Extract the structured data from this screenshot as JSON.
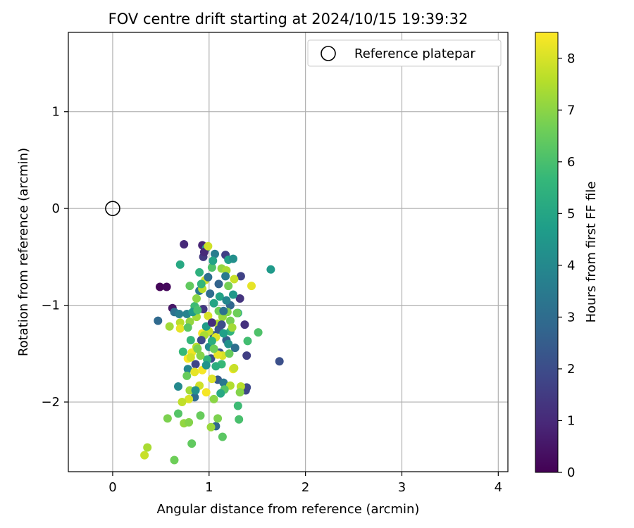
{
  "chart_data": {
    "type": "scatter",
    "title": "FOV centre drift starting at 2024/10/15 19:39:32",
    "xlabel": "Angular distance from reference (arcmin)",
    "ylabel": "Rotation from reference (arcmin)",
    "xlim": [
      -0.46,
      4.1
    ],
    "ylim": [
      -2.72,
      1.82
    ],
    "xticks": [
      0,
      1,
      2,
      3,
      4
    ],
    "xtick_labels": [
      "0",
      "1",
      "2",
      "3",
      "4"
    ],
    "yticks": [
      -2,
      -1,
      0,
      1
    ],
    "ytick_labels": [
      "−2",
      "−1",
      "0",
      "1"
    ],
    "grid": true,
    "legend": {
      "position": "top-right",
      "label": "Reference platepar"
    },
    "reference_point": {
      "x": 0,
      "y": 0,
      "label": "Reference platepar"
    },
    "colorbar": {
      "label": "Hours from first FF file",
      "range": [
        0,
        8.5
      ],
      "ticks": [
        0,
        1,
        2,
        3,
        4,
        5,
        6,
        7,
        8
      ],
      "tick_labels": [
        "0",
        "1",
        "2",
        "3",
        "4",
        "5",
        "6",
        "7",
        "8"
      ],
      "colormap": "viridis"
    },
    "points": [
      [
        0.49,
        -0.81,
        0.1
      ],
      [
        0.56,
        -0.81,
        0.2
      ],
      [
        0.62,
        -1.03,
        0.5
      ],
      [
        0.74,
        -0.37,
        1.0
      ],
      [
        0.93,
        -0.38,
        0.9
      ],
      [
        0.94,
        -0.5,
        1.4
      ],
      [
        1.17,
        -0.48,
        1.6
      ],
      [
        1.33,
        -0.7,
        1.7
      ],
      [
        1.32,
        -0.93,
        1.3
      ],
      [
        1.37,
        -1.2,
        1.2
      ],
      [
        1.39,
        -1.52,
        1.6
      ],
      [
        1.73,
        -1.58,
        2.1
      ],
      [
        1.39,
        -1.85,
        1.9
      ],
      [
        1.38,
        -1.88,
        1.8
      ],
      [
        0.47,
        -1.16,
        2.9
      ],
      [
        0.64,
        -1.07,
        3.2
      ],
      [
        0.69,
        -1.09,
        3.6
      ],
      [
        0.77,
        -1.09,
        3.8
      ],
      [
        0.68,
        -1.84,
        4.0
      ],
      [
        1.64,
        -0.63,
        4.6
      ],
      [
        0.7,
        -0.58,
        5.1
      ],
      [
        1.2,
        -0.53,
        4.8
      ],
      [
        1.25,
        -0.52,
        4.2
      ],
      [
        0.97,
        -0.41,
        4.3
      ],
      [
        1.06,
        -0.47,
        3.6
      ],
      [
        0.9,
        -0.85,
        3.4
      ],
      [
        1.01,
        -0.88,
        3.0
      ],
      [
        1.22,
        -1.0,
        2.8
      ],
      [
        1.05,
        -1.31,
        2.5
      ],
      [
        1.18,
        -1.36,
        2.6
      ],
      [
        1.11,
        -1.49,
        2.2
      ],
      [
        1.02,
        -1.55,
        2.0
      ],
      [
        0.86,
        -1.61,
        1.8
      ],
      [
        0.78,
        -1.66,
        3.9
      ],
      [
        1.09,
        -1.77,
        2.4
      ],
      [
        1.15,
        -1.8,
        3.4
      ],
      [
        0.85,
        -1.95,
        3.0
      ],
      [
        1.07,
        -2.25,
        2.8
      ],
      [
        1.3,
        -1.08,
        5.2
      ],
      [
        1.22,
        -1.27,
        5.5
      ],
      [
        1.4,
        -1.37,
        5.9
      ],
      [
        1.51,
        -1.28,
        6.1
      ],
      [
        1.3,
        -2.04,
        5.8
      ],
      [
        1.31,
        -2.18,
        6.0
      ],
      [
        1.14,
        -2.36,
        6.3
      ],
      [
        0.82,
        -2.43,
        6.4
      ],
      [
        0.64,
        -2.6,
        6.6
      ],
      [
        0.57,
        -2.17,
        6.8
      ],
      [
        0.68,
        -2.12,
        6.2
      ],
      [
        0.74,
        -2.22,
        7.1
      ],
      [
        0.79,
        -2.21,
        6.9
      ],
      [
        0.91,
        -2.14,
        6.5
      ],
      [
        1.02,
        -2.26,
        7.2
      ],
      [
        1.09,
        -2.17,
        6.8
      ],
      [
        0.33,
        -2.55,
        7.8
      ],
      [
        0.36,
        -2.47,
        7.4
      ],
      [
        1.33,
        -1.84,
        7.6
      ],
      [
        1.22,
        -1.83,
        7.5
      ],
      [
        1.32,
        -1.9,
        6.9
      ],
      [
        1.25,
        -1.66,
        8.3
      ],
      [
        1.14,
        -1.52,
        8.0
      ],
      [
        1.09,
        -1.51,
        8.2
      ],
      [
        0.97,
        -1.9,
        8.4
      ],
      [
        1.03,
        -1.76,
        8.1
      ],
      [
        0.9,
        -1.83,
        7.9
      ],
      [
        0.79,
        -1.97,
        8.0
      ],
      [
        0.72,
        -2.0,
        7.7
      ],
      [
        0.8,
        -1.88,
        7.3
      ],
      [
        0.85,
        -1.69,
        8.2
      ],
      [
        0.93,
        -1.67,
        8.4
      ],
      [
        0.78,
        -1.55,
        8.5
      ],
      [
        0.82,
        -1.49,
        8.3
      ],
      [
        0.87,
        -1.43,
        7.6
      ],
      [
        0.93,
        -1.29,
        8.4
      ],
      [
        1.0,
        -1.27,
        7.8
      ],
      [
        1.07,
        -1.33,
        8.1
      ],
      [
        0.95,
        -1.31,
        7.4
      ],
      [
        1.09,
        -1.19,
        7.5
      ],
      [
        1.14,
        -1.12,
        7.2
      ],
      [
        1.22,
        -1.16,
        6.7
      ],
      [
        1.24,
        -1.23,
        7.3
      ],
      [
        1.19,
        -1.07,
        6.9
      ],
      [
        1.1,
        -1.06,
        6.6
      ],
      [
        0.99,
        -1.11,
        8.0
      ],
      [
        0.87,
        -1.12,
        7.3
      ],
      [
        0.8,
        -1.17,
        7.1
      ],
      [
        0.7,
        -1.18,
        7.6
      ],
      [
        0.7,
        -1.24,
        8.2
      ],
      [
        0.59,
        -1.22,
        7.3
      ],
      [
        0.78,
        -1.23,
        6.3
      ],
      [
        0.73,
        -1.48,
        5.7
      ],
      [
        0.81,
        -1.36,
        5.6
      ],
      [
        0.88,
        -1.45,
        6.8
      ],
      [
        0.98,
        -1.56,
        5.4
      ],
      [
        1.13,
        -1.61,
        5.7
      ],
      [
        1.21,
        -1.5,
        6.5
      ],
      [
        0.85,
        -1.01,
        5.8
      ],
      [
        0.8,
        -0.8,
        6.4
      ],
      [
        0.87,
        -0.93,
        7.0
      ],
      [
        0.93,
        -0.83,
        7.6
      ],
      [
        0.96,
        -0.74,
        7.9
      ],
      [
        0.9,
        -0.66,
        5.4
      ],
      [
        1.03,
        -0.61,
        6.1
      ],
      [
        1.13,
        -0.62,
        7.1
      ],
      [
        1.18,
        -0.64,
        7.4
      ],
      [
        1.26,
        -0.73,
        7.8
      ],
      [
        1.2,
        -0.8,
        6.7
      ],
      [
        1.25,
        -0.89,
        4.5
      ],
      [
        1.11,
        -0.91,
        4.9
      ],
      [
        1.44,
        -0.8,
        8.2
      ],
      [
        1.29,
        -1.08,
        6.6
      ],
      [
        1.05,
        -0.98,
        5.0
      ],
      [
        0.97,
        -1.22,
        4.7
      ],
      [
        1.0,
        -1.43,
        4.0
      ],
      [
        1.07,
        -1.63,
        5.3
      ],
      [
        1.2,
        -1.4,
        4.3
      ],
      [
        1.03,
        -1.37,
        5.3
      ],
      [
        0.95,
        -0.45,
        1.0
      ],
      [
        0.99,
        -0.39,
        7.9
      ],
      [
        0.94,
        -1.04,
        1.4
      ],
      [
        1.15,
        -1.06,
        3.2
      ],
      [
        1.18,
        -0.95,
        3.9
      ],
      [
        1.1,
        -1.25,
        2.3
      ],
      [
        0.97,
        -1.62,
        4.4
      ],
      [
        0.83,
        -1.07,
        4.6
      ],
      [
        1.16,
        -1.87,
        6.2
      ],
      [
        1.05,
        -1.97,
        7.0
      ],
      [
        1.26,
        -1.65,
        7.8
      ],
      [
        0.99,
        -0.71,
        3.1
      ],
      [
        0.92,
        -0.78,
        5.6
      ],
      [
        1.04,
        -0.54,
        4.9
      ],
      [
        1.1,
        -0.78,
        2.7
      ],
      [
        1.17,
        -0.7,
        3.5
      ],
      [
        0.88,
        -1.05,
        6.0
      ],
      [
        1.03,
        -1.18,
        1.1
      ],
      [
        0.91,
        -1.52,
        6.9
      ],
      [
        0.81,
        -1.54,
        7.9
      ],
      [
        0.77,
        -1.73,
        6.5
      ],
      [
        1.12,
        -1.91,
        5.1
      ],
      [
        1.27,
        -1.44,
        3.1
      ],
      [
        0.92,
        -1.36,
        1.9
      ],
      [
        1.15,
        -1.29,
        4.8
      ],
      [
        0.86,
        -1.88,
        4.3
      ],
      [
        1.05,
        -1.45,
        6.6
      ],
      [
        1.13,
        -1.2,
        2.0
      ]
    ]
  }
}
